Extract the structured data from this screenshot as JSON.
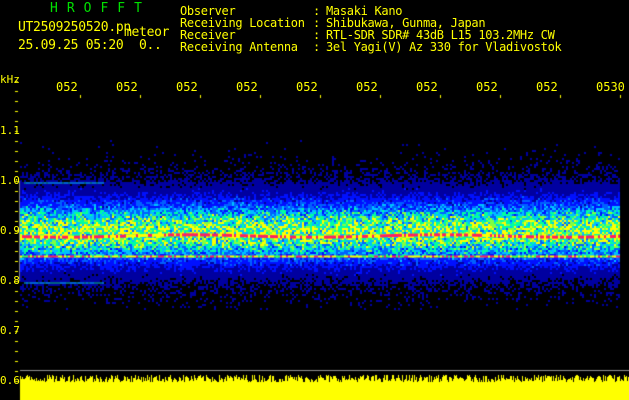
{
  "header": {
    "title": "HROFFT",
    "filename": "UT2509250520.pn",
    "mode": "meteor",
    "datetime": "25.09.25 05:20",
    "count": "0.."
  },
  "info": [
    {
      "label": "Observer",
      "value": "Masaki Kano"
    },
    {
      "label": "Receiving Location",
      "value": "Shibukawa, Gunma, Japan"
    },
    {
      "label": "Receiver",
      "value": "RTL-SDR SDR# 43dB L15 103.2MHz CW"
    },
    {
      "label": "Receiving Antenna",
      "value": "3el Yagi(V) Az 330 for Vladivostok"
    }
  ],
  "axis": {
    "y_unit": "kHz",
    "y_ticks": [
      "1.1",
      "1.0",
      "0.9",
      "0.8",
      "0.7",
      "0.6"
    ],
    "time_ticks": [
      "0521",
      "0522",
      "0523",
      "0524",
      "0525",
      "0526",
      "0527",
      "0528",
      "0529",
      "0530"
    ]
  },
  "colors": {
    "text": "#ffff00",
    "title": "#00e000",
    "signal": "#ff2060",
    "background": "#000000"
  }
}
